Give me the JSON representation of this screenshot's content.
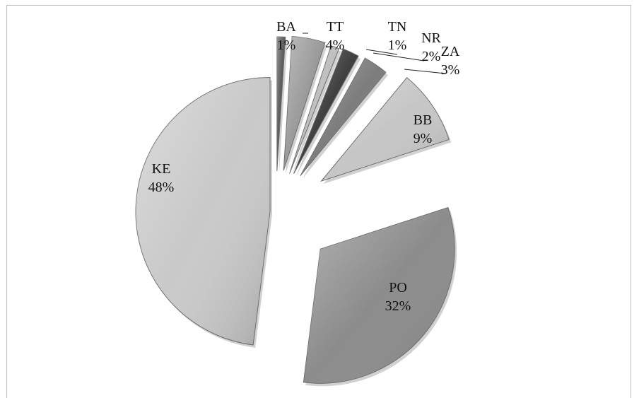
{
  "chart_data": {
    "type": "pie",
    "style": "exploded-3d",
    "slices": [
      {
        "name": "BA",
        "label": "BA",
        "pct_label": "1%",
        "value": 1,
        "color": "#555555"
      },
      {
        "name": "TT",
        "label": "TT",
        "pct_label": "4%",
        "value": 4,
        "color": "#9a9a9a"
      },
      {
        "name": "TN",
        "label": "TN",
        "pct_label": "1%",
        "value": 1,
        "color": "#bfbfbf"
      },
      {
        "name": "NR",
        "label": "NR",
        "pct_label": "2%",
        "value": 2,
        "color": "#404040"
      },
      {
        "name": "ZA",
        "label": "ZA",
        "pct_label": "3%",
        "value": 3,
        "color": "#7d7d7d"
      },
      {
        "name": "BB",
        "label": "BB",
        "pct_label": "9%",
        "value": 9,
        "color": "#c6c6c6"
      },
      {
        "name": "PO",
        "label": "PO",
        "pct_label": "32%",
        "value": 32,
        "color": "#8c8c8c"
      },
      {
        "name": "KE",
        "label": "KE",
        "pct_label": "48%",
        "value": 48,
        "color": "#c9c9c9"
      }
    ],
    "title": "",
    "legend": "none"
  }
}
